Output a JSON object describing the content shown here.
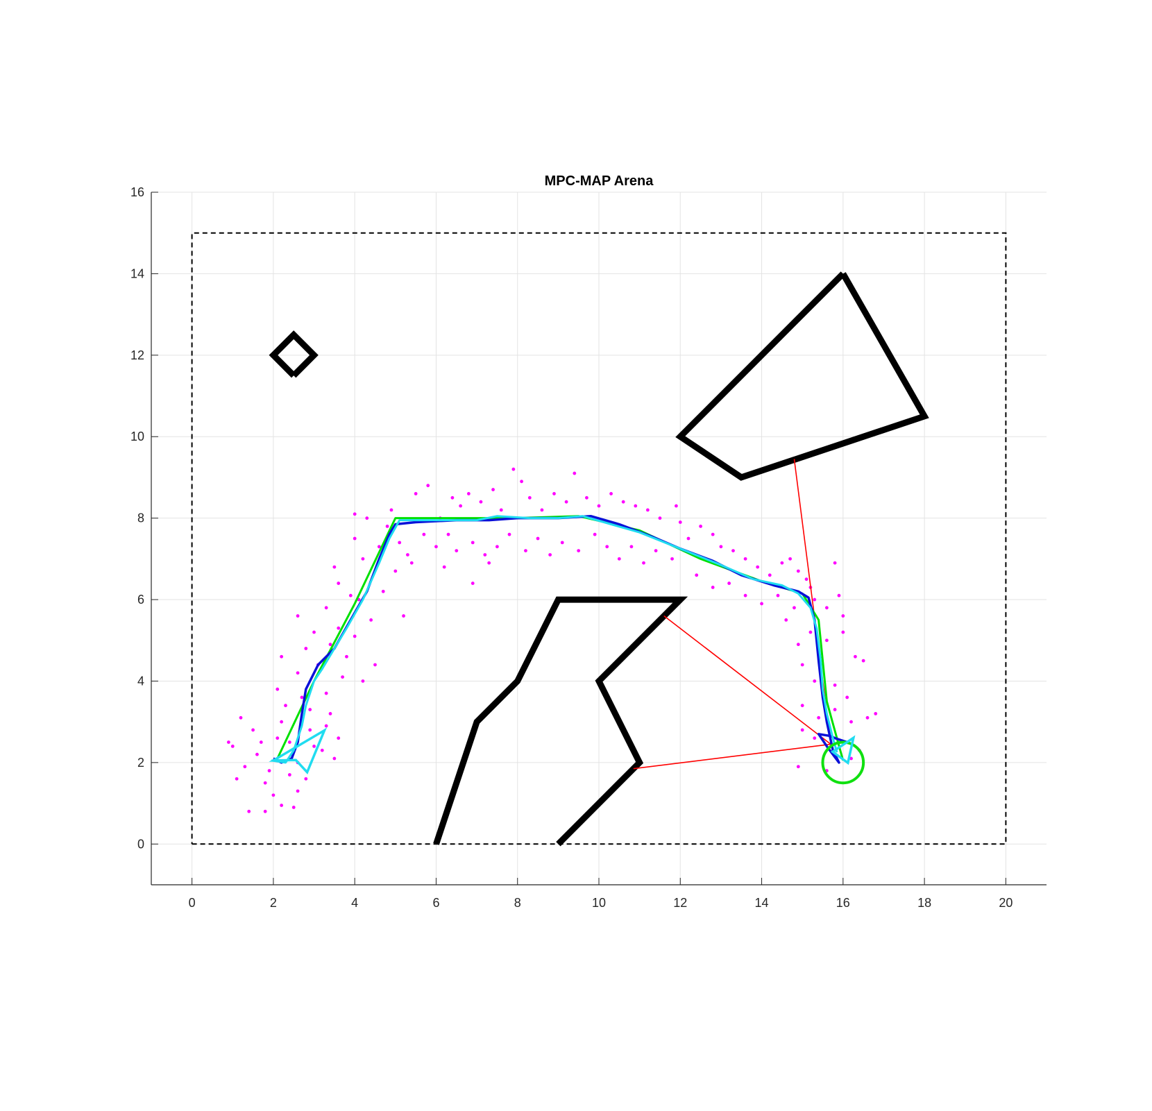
{
  "chart_data": {
    "type": "scatter",
    "title": "MPC-MAP Arena",
    "xlabel": "",
    "ylabel": "",
    "xlim": [
      -1,
      21
    ],
    "ylim": [
      -1,
      16
    ],
    "xticks": [
      0,
      2,
      4,
      6,
      8,
      10,
      12,
      14,
      16,
      18,
      20
    ],
    "yticks": [
      0,
      2,
      4,
      6,
      8,
      10,
      12,
      14,
      16
    ],
    "grid": true,
    "colors": {
      "grid": "#e3e3e3",
      "axes": "#262626",
      "boundary": "#000000",
      "obstacle": "#000000",
      "reference_path": "#00e000",
      "estimated_path": "#0a10d8",
      "true_path": "#20dcf0",
      "particles": "#ff00ff",
      "lidar_rays": "#ff0000",
      "goal": "#10e010"
    },
    "boundary": [
      [
        0,
        0
      ],
      [
        20,
        0
      ],
      [
        20,
        15
      ],
      [
        0,
        15
      ],
      [
        0,
        0
      ]
    ],
    "obstacles": [
      [
        [
          2.5,
          11.5
        ],
        [
          3.0,
          12.0
        ],
        [
          2.5,
          12.5
        ],
        [
          2.0,
          12.0
        ],
        [
          2.5,
          11.5
        ]
      ],
      [
        [
          16.0,
          14.0
        ],
        [
          18.0,
          10.5
        ],
        [
          13.5,
          9.0
        ],
        [
          12.0,
          10.0
        ],
        [
          16.0,
          14.0
        ]
      ],
      [
        [
          6.0,
          0.0
        ],
        [
          7.0,
          3.0
        ],
        [
          8.0,
          4.0
        ],
        [
          9.0,
          6.0
        ],
        [
          12.0,
          6.0
        ],
        [
          10.0,
          4.0
        ],
        [
          11.0,
          2.0
        ],
        [
          9.0,
          0.0
        ]
      ]
    ],
    "reference_path": [
      [
        2.1,
        2.1
      ],
      [
        3.0,
        4.0
      ],
      [
        4.0,
        5.9
      ],
      [
        5.0,
        8.0
      ],
      [
        6.5,
        8.0
      ],
      [
        8.0,
        8.0
      ],
      [
        9.5,
        8.05
      ],
      [
        11.0,
        7.7
      ],
      [
        12.5,
        7.0
      ],
      [
        14.0,
        6.45
      ],
      [
        15.0,
        6.15
      ],
      [
        15.4,
        5.5
      ],
      [
        15.6,
        3.5
      ],
      [
        16.0,
        2.05
      ]
    ],
    "estimated_path": [
      [
        2.0,
        2.1
      ],
      [
        2.2,
        2.0
      ],
      [
        2.45,
        2.1
      ],
      [
        2.6,
        2.5
      ],
      [
        2.7,
        3.2
      ],
      [
        2.8,
        3.8
      ],
      [
        3.1,
        4.4
      ],
      [
        3.5,
        4.8
      ],
      [
        3.9,
        5.5
      ],
      [
        4.3,
        6.2
      ],
      [
        4.6,
        7.0
      ],
      [
        4.85,
        7.6
      ],
      [
        5.0,
        7.85
      ],
      [
        5.5,
        7.9
      ],
      [
        6.5,
        7.95
      ],
      [
        7.3,
        7.95
      ],
      [
        8.0,
        8.0
      ],
      [
        9.0,
        8.0
      ],
      [
        9.8,
        8.05
      ],
      [
        10.5,
        7.85
      ],
      [
        11.3,
        7.55
      ],
      [
        12.0,
        7.25
      ],
      [
        12.8,
        6.95
      ],
      [
        13.5,
        6.6
      ],
      [
        14.3,
        6.35
      ],
      [
        14.9,
        6.2
      ],
      [
        15.15,
        6.05
      ],
      [
        15.3,
        5.5
      ],
      [
        15.4,
        4.5
      ],
      [
        15.5,
        3.6
      ],
      [
        15.6,
        3.0
      ],
      [
        15.75,
        2.3
      ],
      [
        15.9,
        2.0
      ],
      [
        15.6,
        2.4
      ],
      [
        15.4,
        2.7
      ],
      [
        15.7,
        2.65
      ],
      [
        15.8,
        2.6
      ],
      [
        16.1,
        2.5
      ]
    ],
    "true_path": [
      [
        1.95,
        2.05
      ],
      [
        2.3,
        2.0
      ],
      [
        2.5,
        2.3
      ],
      [
        2.7,
        2.9
      ],
      [
        2.8,
        3.4
      ],
      [
        3.0,
        4.0
      ],
      [
        3.2,
        4.3
      ],
      [
        3.5,
        4.8
      ],
      [
        3.8,
        5.3
      ],
      [
        4.2,
        6.0
      ],
      [
        4.6,
        6.9
      ],
      [
        4.85,
        7.5
      ],
      [
        5.1,
        7.95
      ],
      [
        6.0,
        7.95
      ],
      [
        7.0,
        7.95
      ],
      [
        7.5,
        8.05
      ],
      [
        8.3,
        8.0
      ],
      [
        9.0,
        8.0
      ],
      [
        9.6,
        8.05
      ],
      [
        10.3,
        7.85
      ],
      [
        11.0,
        7.65
      ],
      [
        12.0,
        7.25
      ],
      [
        13.0,
        6.85
      ],
      [
        13.8,
        6.5
      ],
      [
        14.5,
        6.35
      ],
      [
        14.9,
        6.15
      ],
      [
        15.2,
        5.8
      ],
      [
        15.35,
        5.3
      ],
      [
        15.45,
        4.5
      ],
      [
        15.5,
        3.8
      ],
      [
        15.6,
        3.2
      ],
      [
        15.75,
        2.6
      ],
      [
        15.85,
        2.25
      ]
    ],
    "true_robot_marker": {
      "x": 2.0,
      "y": 2.05,
      "heading_deg": 10
    },
    "true_robot_marker_end": {
      "x": 16.05,
      "y": 2.3,
      "heading_deg": 75
    },
    "goal": {
      "x": 16.0,
      "y": 2.0,
      "radius": 0.5
    },
    "lidar_rays": [
      {
        "from": [
          15.7,
          2.45
        ],
        "to": [
          14.8,
          9.45
        ]
      },
      {
        "from": [
          15.7,
          2.45
        ],
        "to": [
          11.6,
          5.6
        ]
      },
      {
        "from": [
          15.7,
          2.45
        ],
        "to": [
          10.85,
          1.85
        ]
      }
    ],
    "particles": [
      [
        2.1,
        2.6
      ],
      [
        1.6,
        2.2
      ],
      [
        2.4,
        1.7
      ],
      [
        2.9,
        2.8
      ],
      [
        1.3,
        1.9
      ],
      [
        3.2,
        2.3
      ],
      [
        1.8,
        1.5
      ],
      [
        2.6,
        1.3
      ],
      [
        1.0,
        2.4
      ],
      [
        3.5,
        2.1
      ],
      [
        2.2,
        3.0
      ],
      [
        1.5,
        2.8
      ],
      [
        2.0,
        1.2
      ],
      [
        2.8,
        1.6
      ],
      [
        1.4,
        0.8
      ],
      [
        2.5,
        0.9
      ],
      [
        1.8,
        0.8
      ],
      [
        3.3,
        2.9
      ],
      [
        1.2,
        3.1
      ],
      [
        2.3,
        3.4
      ],
      [
        3.0,
        2.4
      ],
      [
        1.7,
        2.5
      ],
      [
        2.6,
        2.0
      ],
      [
        1.9,
        1.8
      ],
      [
        2.4,
        2.5
      ],
      [
        0.9,
        2.5
      ],
      [
        1.1,
        1.6
      ],
      [
        2.2,
        0.95
      ],
      [
        3.6,
        2.6
      ],
      [
        3.4,
        3.2
      ],
      [
        2.7,
        3.6
      ],
      [
        2.1,
        3.8
      ],
      [
        2.6,
        4.2
      ],
      [
        3.1,
        4.4
      ],
      [
        2.8,
        4.8
      ],
      [
        3.4,
        4.9
      ],
      [
        2.2,
        4.6
      ],
      [
        3.0,
        5.2
      ],
      [
        3.6,
        5.3
      ],
      [
        2.6,
        5.6
      ],
      [
        3.3,
        5.8
      ],
      [
        3.9,
        6.1
      ],
      [
        3.6,
        6.4
      ],
      [
        4.1,
        6.0
      ],
      [
        3.5,
        6.8
      ],
      [
        4.2,
        7.0
      ],
      [
        4.0,
        7.5
      ],
      [
        4.6,
        7.3
      ],
      [
        4.3,
        8.0
      ],
      [
        4.0,
        8.1
      ],
      [
        4.8,
        7.8
      ],
      [
        4.9,
        8.2
      ],
      [
        5.1,
        7.4
      ],
      [
        5.3,
        7.1
      ],
      [
        5.0,
        6.7
      ],
      [
        5.4,
        6.9
      ],
      [
        4.7,
        6.2
      ],
      [
        5.2,
        5.6
      ],
      [
        4.4,
        5.5
      ],
      [
        4.0,
        5.1
      ],
      [
        3.8,
        4.6
      ],
      [
        4.5,
        4.4
      ],
      [
        4.2,
        4.0
      ],
      [
        3.7,
        4.1
      ],
      [
        3.3,
        3.7
      ],
      [
        2.9,
        3.3
      ],
      [
        5.5,
        8.6
      ],
      [
        5.8,
        8.8
      ],
      [
        6.1,
        8.0
      ],
      [
        6.4,
        8.5
      ],
      [
        6.6,
        8.3
      ],
      [
        6.8,
        8.6
      ],
      [
        7.1,
        8.4
      ],
      [
        7.4,
        8.7
      ],
      [
        7.6,
        8.2
      ],
      [
        7.9,
        9.2
      ],
      [
        8.1,
        8.9
      ],
      [
        8.3,
        8.5
      ],
      [
        8.6,
        8.2
      ],
      [
        8.9,
        8.6
      ],
      [
        9.2,
        8.4
      ],
      [
        9.4,
        9.1
      ],
      [
        9.7,
        8.5
      ],
      [
        10.0,
        8.3
      ],
      [
        10.3,
        8.6
      ],
      [
        10.6,
        8.4
      ],
      [
        10.9,
        8.3
      ],
      [
        11.2,
        8.2
      ],
      [
        11.5,
        8.0
      ],
      [
        11.9,
        8.3
      ],
      [
        12.0,
        7.9
      ],
      [
        5.7,
        7.6
      ],
      [
        6.0,
        7.3
      ],
      [
        6.3,
        7.6
      ],
      [
        6.5,
        7.2
      ],
      [
        6.9,
        7.4
      ],
      [
        7.2,
        7.1
      ],
      [
        7.5,
        7.3
      ],
      [
        7.8,
        7.6
      ],
      [
        8.2,
        7.2
      ],
      [
        8.5,
        7.5
      ],
      [
        8.8,
        7.1
      ],
      [
        9.1,
        7.4
      ],
      [
        9.5,
        7.2
      ],
      [
        9.9,
        7.6
      ],
      [
        10.2,
        7.3
      ],
      [
        10.5,
        7.0
      ],
      [
        10.8,
        7.3
      ],
      [
        11.1,
        6.9
      ],
      [
        11.4,
        7.2
      ],
      [
        11.8,
        7.0
      ],
      [
        6.2,
        6.8
      ],
      [
        6.9,
        6.4
      ],
      [
        7.3,
        6.9
      ],
      [
        12.2,
        7.5
      ],
      [
        12.5,
        7.8
      ],
      [
        12.8,
        7.6
      ],
      [
        13.0,
        7.3
      ],
      [
        13.3,
        7.2
      ],
      [
        13.6,
        7.0
      ],
      [
        13.9,
        6.8
      ],
      [
        14.2,
        6.6
      ],
      [
        14.5,
        6.9
      ],
      [
        14.7,
        7.0
      ],
      [
        14.9,
        6.7
      ],
      [
        12.4,
        6.6
      ],
      [
        12.8,
        6.3
      ],
      [
        13.2,
        6.4
      ],
      [
        13.6,
        6.1
      ],
      [
        14.0,
        5.9
      ],
      [
        14.4,
        6.1
      ],
      [
        14.8,
        5.8
      ],
      [
        15.1,
        6.5
      ],
      [
        15.3,
        6.0
      ],
      [
        15.6,
        5.8
      ],
      [
        15.9,
        6.1
      ],
      [
        15.2,
        5.2
      ],
      [
        15.6,
        5.0
      ],
      [
        16.0,
        5.2
      ],
      [
        16.3,
        4.6
      ],
      [
        16.5,
        4.5
      ],
      [
        14.9,
        4.9
      ],
      [
        15.0,
        4.4
      ],
      [
        15.3,
        4.0
      ],
      [
        15.8,
        3.9
      ],
      [
        16.1,
        3.6
      ],
      [
        15.0,
        3.4
      ],
      [
        15.4,
        3.1
      ],
      [
        15.8,
        3.3
      ],
      [
        16.2,
        3.0
      ],
      [
        16.6,
        3.1
      ],
      [
        16.8,
        3.2
      ],
      [
        15.0,
        2.8
      ],
      [
        15.3,
        2.6
      ],
      [
        16.4,
        2.3
      ],
      [
        16.2,
        2.1
      ],
      [
        14.9,
        1.9
      ],
      [
        15.6,
        1.8
      ],
      [
        15.8,
        6.9
      ],
      [
        14.6,
        5.5
      ],
      [
        15.2,
        6.3
      ],
      [
        16.0,
        5.6
      ]
    ]
  }
}
